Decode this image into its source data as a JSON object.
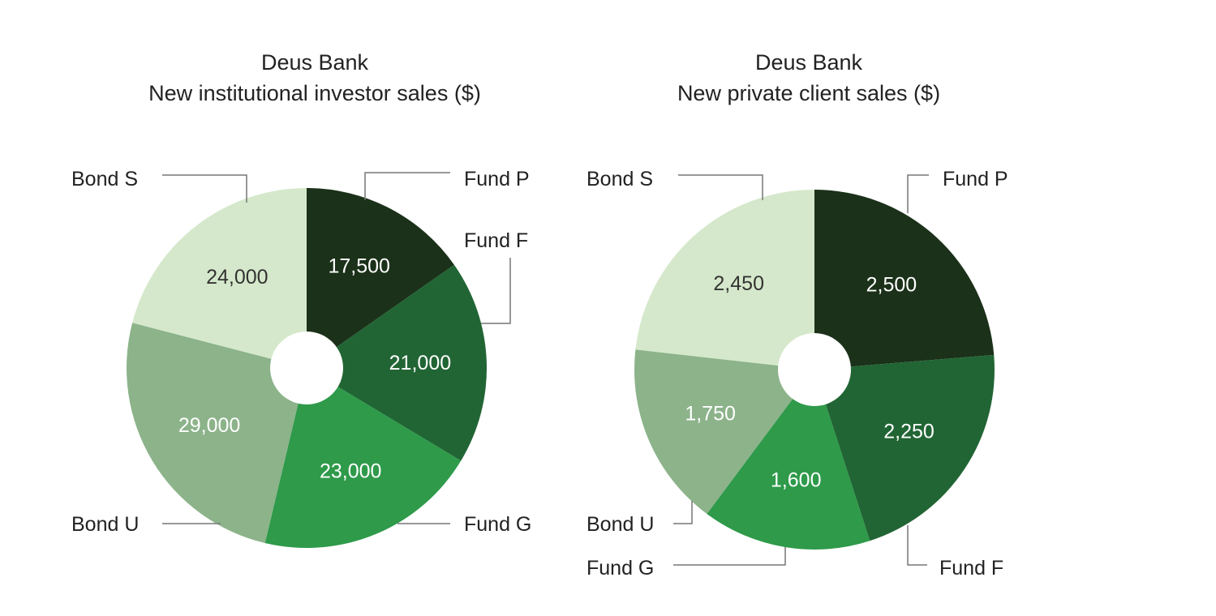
{
  "chart_data": [
    {
      "type": "pie",
      "title": "Deus Bank",
      "subtitle": "New institutional investor sales ($)",
      "slices": [
        {
          "label": "Fund P",
          "value": 17500,
          "display": "17,500",
          "color": "#1b3119",
          "text_color": "#ffffff"
        },
        {
          "label": "Fund F",
          "value": 21000,
          "display": "21,000",
          "color": "#216534",
          "text_color": "#ffffff"
        },
        {
          "label": "Fund G",
          "value": 23000,
          "display": "23,000",
          "color": "#2e9a4a",
          "text_color": "#ffffff"
        },
        {
          "label": "Bond U",
          "value": 29000,
          "display": "29,000",
          "color": "#8cb38a",
          "text_color": "#ffffff"
        },
        {
          "label": "Bond S",
          "value": 24000,
          "display": "24,000",
          "color": "#d5e8cb",
          "text_color": "#333333"
        }
      ]
    },
    {
      "type": "pie",
      "title": "Deus Bank",
      "subtitle": "New private client sales ($)",
      "slices": [
        {
          "label": "Fund P",
          "value": 2500,
          "display": "2,500",
          "color": "#1b3119",
          "text_color": "#ffffff"
        },
        {
          "label": "Fund F",
          "value": 2250,
          "display": "2,250",
          "color": "#216534",
          "text_color": "#ffffff"
        },
        {
          "label": "Fund G",
          "value": 1600,
          "display": "1,600",
          "color": "#2e9a4a",
          "text_color": "#ffffff"
        },
        {
          "label": "Bond U",
          "value": 1750,
          "display": "1,750",
          "color": "#8cb38a",
          "text_color": "#ffffff"
        },
        {
          "label": "Bond S",
          "value": 2450,
          "display": "2,450",
          "color": "#d5e8cb",
          "text_color": "#333333"
        }
      ]
    }
  ]
}
